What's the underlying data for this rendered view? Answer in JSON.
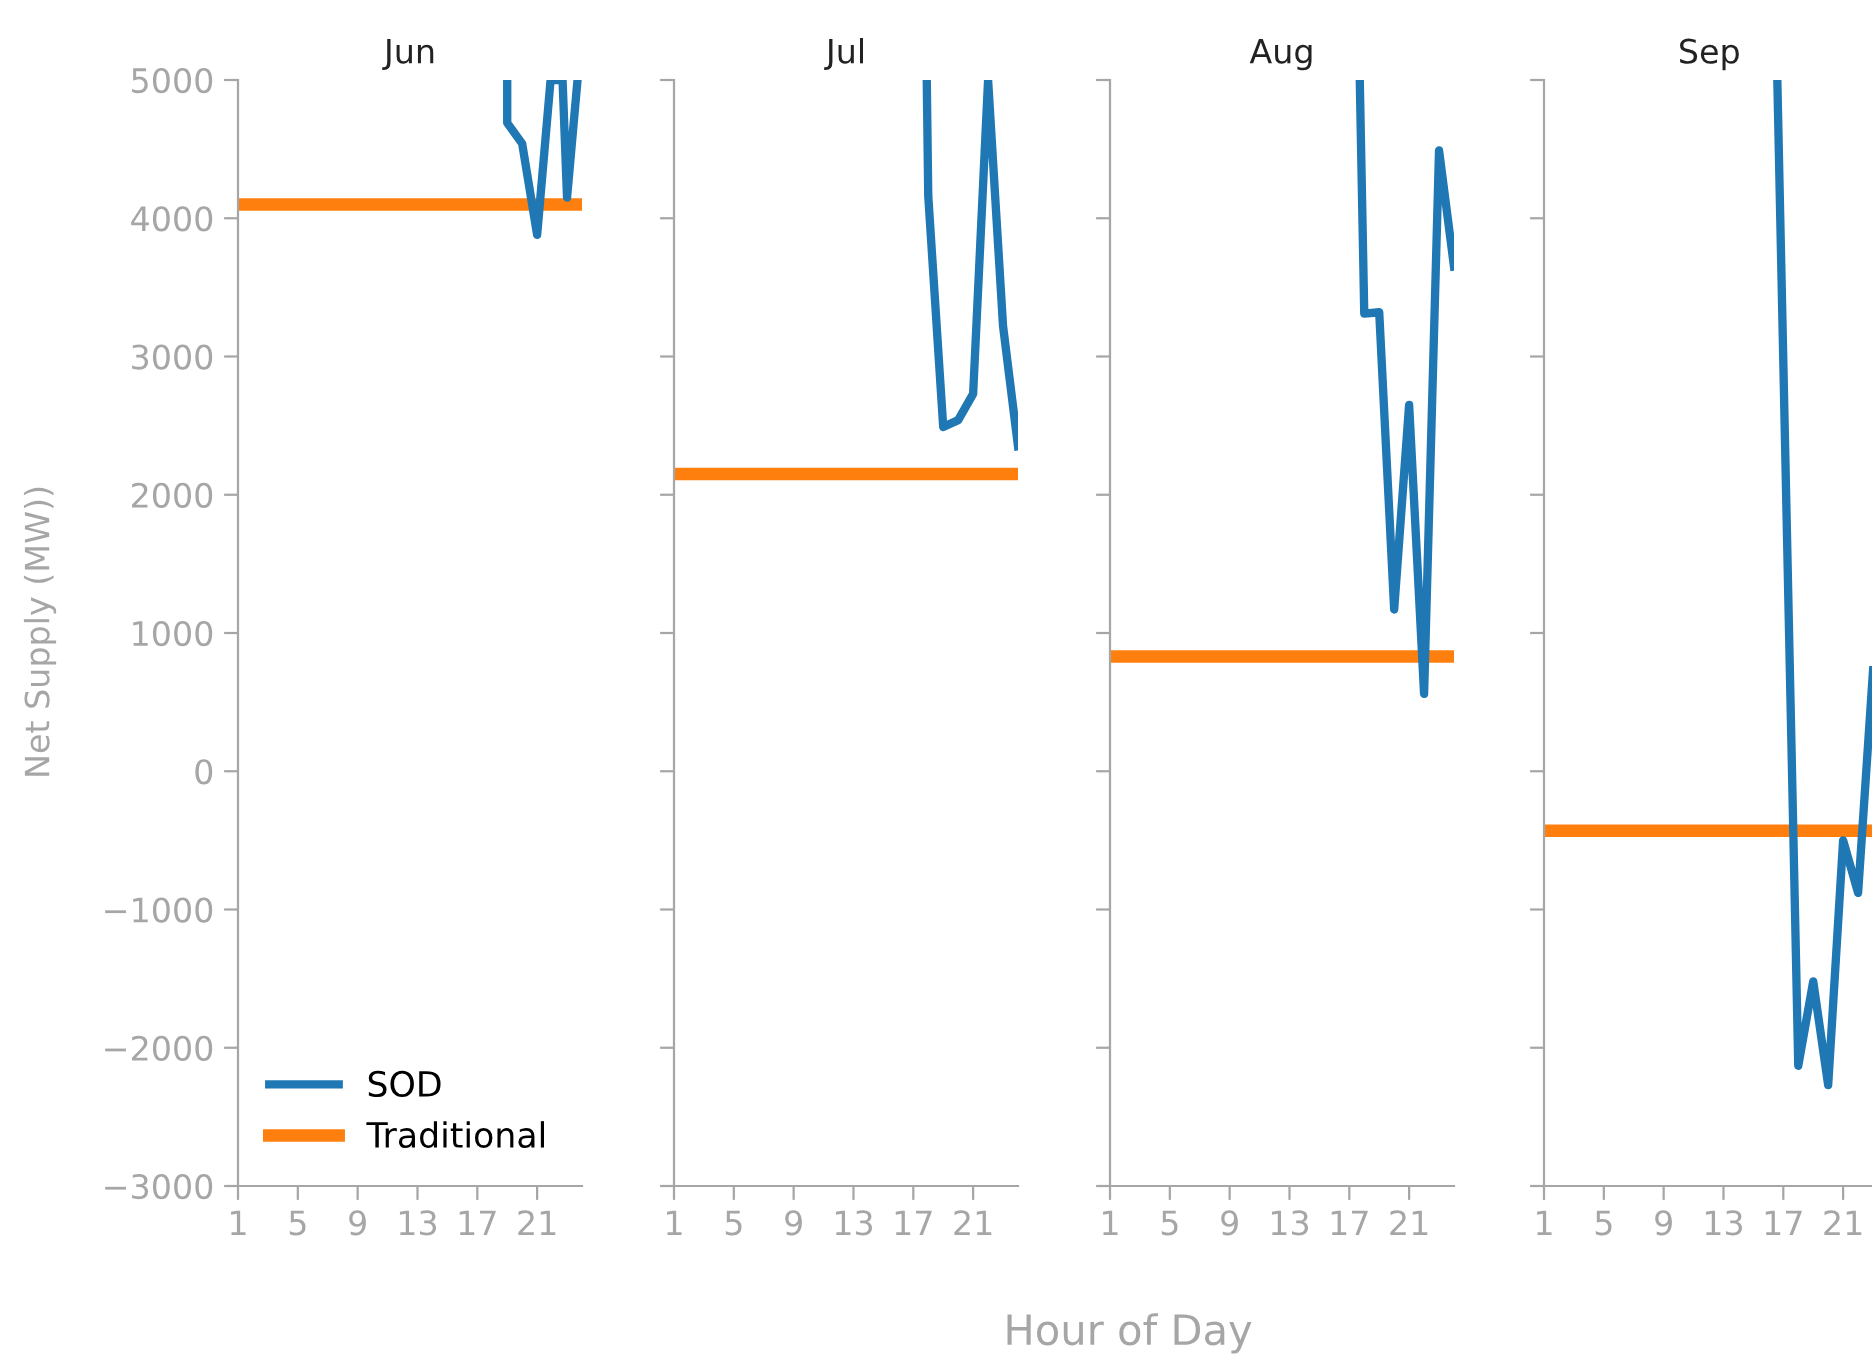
{
  "chart_data": [
    {
      "type": "line",
      "title": "Jun",
      "ylabel": "Net Supply (MW))",
      "legend": "bottom left",
      "grid": false,
      "tick_labels": true,
      "xlim": [
        1,
        24
      ],
      "xticks": [
        1,
        5,
        9,
        13,
        17,
        21
      ],
      "ylim": [
        -3000,
        5000
      ],
      "yticks": [
        {
          "value": -3000,
          "label": "−3000"
        },
        {
          "value": -2000,
          "label": "−2000"
        },
        {
          "value": -1000,
          "label": "−1000"
        },
        0,
        1000,
        2000,
        3000,
        4000,
        5000
      ],
      "series": [
        {
          "name": "SOD",
          "color": "#1f77b4",
          "x": [
            19,
            19,
            20,
            21,
            21.9,
            22.7,
            23,
            23.7
          ],
          "values": [
            5000,
            4690,
            4540,
            3880,
            5000,
            5000,
            4150,
            5000
          ]
        },
        {
          "name": "Traditional",
          "color": "#ff7f0e",
          "x": [
            1,
            24
          ],
          "values": [
            4100,
            4100
          ]
        }
      ]
    },
    {
      "type": "line",
      "title": "Jul",
      "xlabel": "Hour of Day",
      "grid": false,
      "tick_labels": "x",
      "xlim": [
        1,
        24
      ],
      "xticks": [
        1,
        5,
        9,
        13,
        17,
        21
      ],
      "ylim": [
        -3000,
        5000
      ],
      "yticks": [
        -3000,
        -2000,
        -1000,
        0,
        1000,
        2000,
        3000,
        4000,
        5000
      ],
      "series": [
        {
          "color": "#1f77b4",
          "x": [
            17.9,
            18,
            19,
            20,
            21,
            22,
            23,
            24
          ],
          "values": [
            5000,
            4160,
            2490,
            2540,
            2730,
            5000,
            3220,
            2350
          ]
        },
        {
          "color": "#ff7f0e",
          "x": [
            1,
            24
          ],
          "values": [
            2150,
            2150
          ]
        }
      ]
    },
    {
      "type": "line",
      "title": "Aug",
      "grid": false,
      "tick_labels": "x",
      "xlim": [
        1,
        24
      ],
      "xticks": [
        1,
        5,
        9,
        13,
        17,
        21
      ],
      "ylim": [
        -3000,
        5000
      ],
      "yticks": [
        -3000,
        -2000,
        -1000,
        0,
        1000,
        2000,
        3000,
        4000,
        5000
      ],
      "series": [
        {
          "color": "#1f77b4",
          "x": [
            17.7,
            18,
            19,
            20,
            21,
            22,
            23,
            24
          ],
          "values": [
            5000,
            3310,
            3320,
            1170,
            2650,
            560,
            4490,
            3650
          ]
        },
        {
          "color": "#ff7f0e",
          "x": [
            1,
            24
          ],
          "values": [
            830,
            830
          ]
        }
      ]
    },
    {
      "type": "line",
      "title": "Sep",
      "grid": false,
      "tick_labels": "x",
      "xlim": [
        1,
        23.1
      ],
      "xticks": [
        1,
        5,
        9,
        13,
        17,
        21
      ],
      "ylim": [
        -3000,
        5000
      ],
      "yticks": [
        -3000,
        -2000,
        -1000,
        0,
        1000,
        2000,
        3000,
        4000,
        5000
      ],
      "series": [
        {
          "color": "#1f77b4",
          "x": [
            16.6,
            18,
            19,
            20,
            21,
            22,
            23
          ],
          "values": [
            5000,
            -2130,
            -1520,
            -2270,
            -500,
            -880,
            730
          ]
        },
        {
          "color": "#ff7f0e",
          "x": [
            1,
            23.1
          ],
          "values": [
            -430,
            -430
          ]
        }
      ]
    }
  ]
}
